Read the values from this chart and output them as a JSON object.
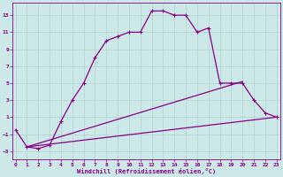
{
  "xlabel": "Windchill (Refroidissement éolien,°C)",
  "background_color": "#cde8e8",
  "grid_color": "#b0d4cc",
  "line_color": "#880088",
  "x_ticks": [
    0,
    1,
    2,
    3,
    4,
    5,
    6,
    7,
    8,
    9,
    10,
    11,
    12,
    13,
    14,
    15,
    16,
    17,
    18,
    19,
    20,
    21,
    22,
    23
  ],
  "y_ticks": [
    -3,
    -1,
    1,
    3,
    5,
    7,
    9,
    11,
    13
  ],
  "xlim": [
    -0.3,
    23.3
  ],
  "ylim": [
    -4.0,
    14.5
  ],
  "curve1_x": [
    0,
    1,
    2,
    3,
    4,
    5,
    6,
    7,
    8,
    9,
    10,
    11,
    12,
    13,
    14,
    15,
    16,
    17,
    18,
    19,
    20,
    21,
    22,
    23
  ],
  "curve1_y": [
    -0.5,
    -2.5,
    -2.7,
    -2.3,
    0.5,
    3.0,
    5.0,
    8.0,
    10.0,
    10.5,
    11.0,
    11.0,
    13.5,
    13.5,
    13.0,
    13.0,
    11.0,
    11.5,
    5.0,
    5.0,
    5.0,
    3.0,
    1.5,
    1.0
  ],
  "line1_x": [
    1,
    23
  ],
  "line1_y": [
    -2.5,
    1.0
  ],
  "line2_x": [
    1,
    20
  ],
  "line2_y": [
    -2.5,
    5.2
  ],
  "marker_size": 2.5,
  "linewidth": 0.9,
  "line_linewidth": 0.9
}
